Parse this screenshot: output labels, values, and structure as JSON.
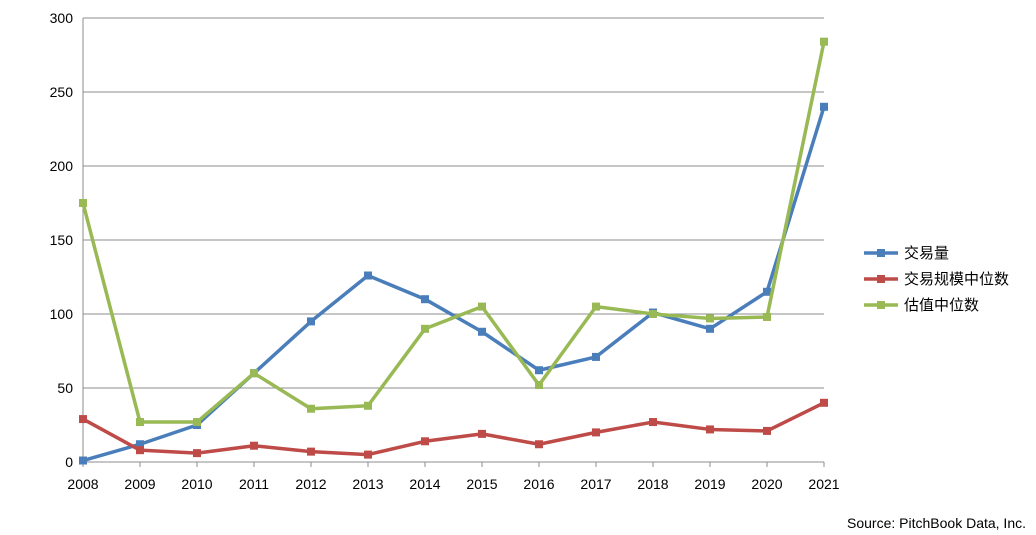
{
  "chart_data": {
    "type": "line",
    "title": "",
    "xlabel": "",
    "ylabel": "",
    "x": [
      "2008",
      "2009",
      "2010",
      "2011",
      "2012",
      "2013",
      "2014",
      "2015",
      "2016",
      "2017",
      "2018",
      "2019",
      "2020",
      "2021"
    ],
    "ylim": [
      0,
      300
    ],
    "yticks": [
      0,
      50,
      100,
      150,
      200,
      250,
      300
    ],
    "grid": true,
    "legend_position": "right",
    "series": [
      {
        "name": "交易量",
        "color": "#4a7ebb",
        "values": [
          1,
          12,
          25,
          60,
          95,
          126,
          110,
          88,
          62,
          71,
          101,
          90,
          115,
          240
        ]
      },
      {
        "name": "交易规模中位数",
        "color": "#be4b48",
        "values": [
          29,
          8,
          6,
          11,
          7,
          5,
          14,
          19,
          12,
          20,
          27,
          22,
          21,
          40
        ]
      },
      {
        "name": "估值中位数",
        "color": "#98b954",
        "values": [
          175,
          27,
          27,
          60,
          36,
          38,
          90,
          105,
          52,
          105,
          100,
          97,
          98,
          284
        ]
      }
    ]
  },
  "source": "Source: PitchBook Data, Inc."
}
